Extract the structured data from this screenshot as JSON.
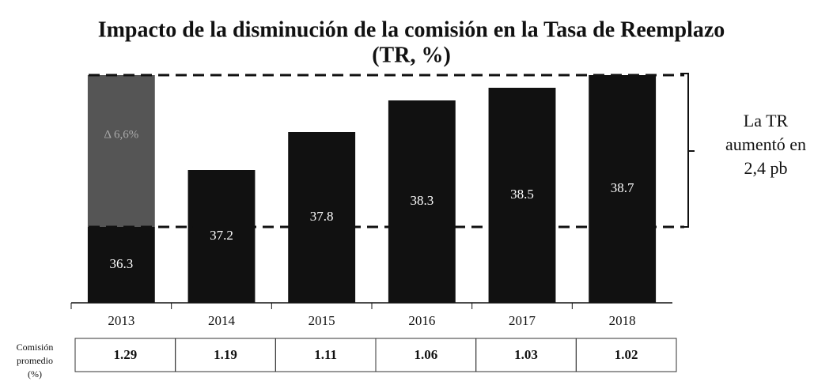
{
  "chart_data": {
    "type": "bar",
    "title": [
      "Impacto de la disminución de la comisión en la Tasa de Reemplazo",
      "(TR, %)"
    ],
    "categories": [
      "2013",
      "2014",
      "2015",
      "2016",
      "2017",
      "2018"
    ],
    "values": [
      36.3,
      37.2,
      37.8,
      38.3,
      38.5,
      38.7
    ],
    "color": "#111111",
    "ylim": [
      35.1,
      38.9
    ],
    "band_annotation": "Δ 6,6%",
    "annotation": [
      "La TR",
      "aumentó en",
      "2,4 pb"
    ],
    "table_label": [
      "Comisión",
      "promedio",
      "(%)"
    ],
    "commission": [
      "1.29",
      "1.19",
      "1.11",
      "1.06",
      "1.03",
      "1.02"
    ]
  }
}
